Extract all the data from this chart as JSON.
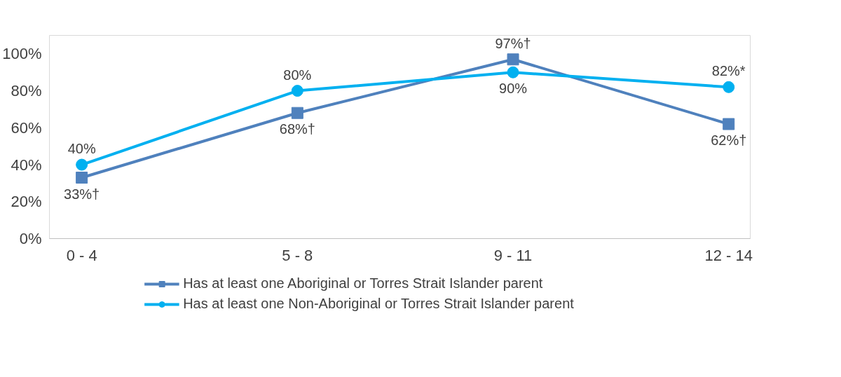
{
  "chart_data": {
    "type": "line",
    "categories": [
      "0 - 4",
      "5 - 8",
      "9 - 11",
      "12 - 14"
    ],
    "series": [
      {
        "name": "Has at least one Aboriginal or Torres Strait Islander parent",
        "color": "#4f81bd",
        "marker": "square",
        "values": [
          33,
          68,
          97,
          62
        ],
        "value_labels": [
          "33%†",
          "68%†",
          "97%†",
          "62%†"
        ]
      },
      {
        "name": "Has at least one Non-Aboriginal or Torres Strait Islander parent",
        "color": "#00b0f0",
        "marker": "circle",
        "values": [
          40,
          80,
          90,
          82
        ],
        "value_labels": [
          "40%",
          "80%",
          "90%",
          "82%*"
        ]
      }
    ],
    "ylim": [
      0,
      110
    ],
    "yticks": [
      {
        "value": 0,
        "label": "0%"
      },
      {
        "value": 20,
        "label": "20%"
      },
      {
        "value": 40,
        "label": "40%"
      },
      {
        "value": 60,
        "label": "60%"
      },
      {
        "value": 80,
        "label": "80%"
      },
      {
        "value": 100,
        "label": "100%"
      }
    ],
    "grid": false,
    "legend": "bottom",
    "line_style": "solid"
  }
}
